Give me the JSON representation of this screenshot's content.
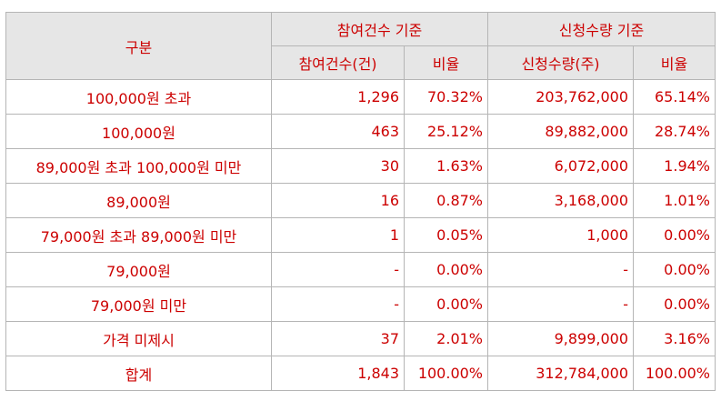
{
  "table": {
    "header": {
      "category": "구분",
      "group_participants": "참여건수 기준",
      "group_quantity": "신청수량 기준",
      "participants_count": "참여건수(건)",
      "participants_ratio": "비율",
      "quantity_count": "신청수량(주)",
      "quantity_ratio": "비율"
    },
    "rows": [
      {
        "category": "100,000원 초과",
        "participants": "1,296",
        "participants_ratio": "70.32%",
        "quantity": "203,762,000",
        "quantity_ratio": "65.14%"
      },
      {
        "category": "100,000원",
        "participants": "463",
        "participants_ratio": "25.12%",
        "quantity": "89,882,000",
        "quantity_ratio": "28.74%"
      },
      {
        "category": "89,000원 초과 100,000원 미만",
        "participants": "30",
        "participants_ratio": "1.63%",
        "quantity": "6,072,000",
        "quantity_ratio": "1.94%"
      },
      {
        "category": "89,000원",
        "participants": "16",
        "participants_ratio": "0.87%",
        "quantity": "3,168,000",
        "quantity_ratio": "1.01%"
      },
      {
        "category": "79,000원 초과 89,000원 미만",
        "participants": "1",
        "participants_ratio": "0.05%",
        "quantity": "1,000",
        "quantity_ratio": "0.00%"
      },
      {
        "category": "79,000원",
        "participants": "-",
        "participants_ratio": "0.00%",
        "quantity": "-",
        "quantity_ratio": "0.00%"
      },
      {
        "category": "79,000원 미만",
        "participants": "-",
        "participants_ratio": "0.00%",
        "quantity": "-",
        "quantity_ratio": "0.00%"
      },
      {
        "category": "가격 미제시",
        "participants": "37",
        "participants_ratio": "2.01%",
        "quantity": "9,899,000",
        "quantity_ratio": "3.16%"
      },
      {
        "category": "합계",
        "participants": "1,843",
        "participants_ratio": "100.00%",
        "quantity": "312,784,000",
        "quantity_ratio": "100.00%"
      }
    ]
  },
  "colors": {
    "text": "#cc0000",
    "header_bg": "#e6e6e6",
    "border": "#b5b5b5"
  }
}
